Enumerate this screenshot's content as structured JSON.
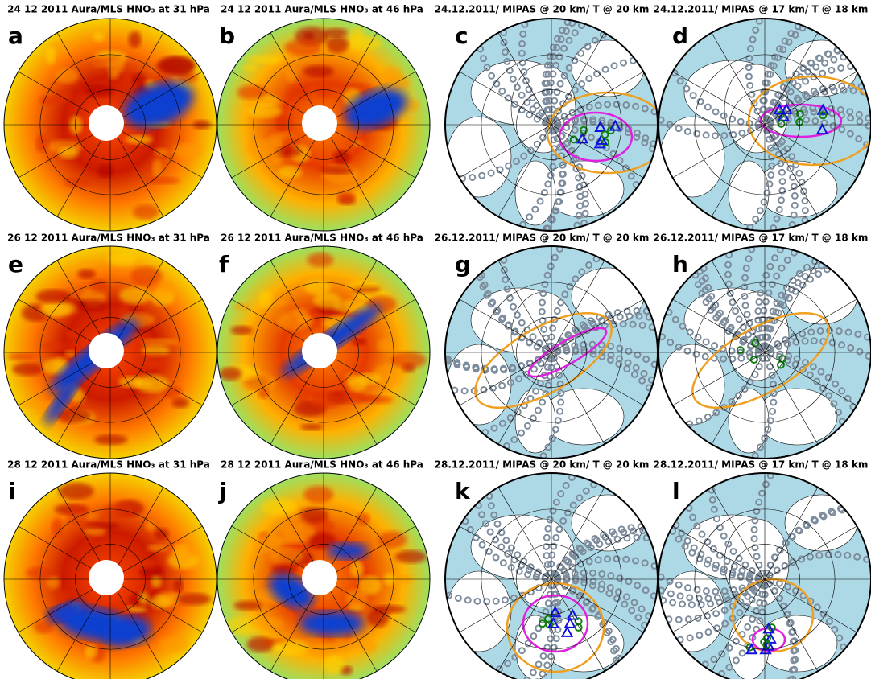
{
  "panels": [
    {
      "label": "a",
      "title": "24 12 2011 Aura/MLS HNO₃ at 31 hPa"
    },
    {
      "label": "b",
      "title": "24 12 2011 Aura/MLS HNO₃ at 46 hPa"
    },
    {
      "label": "c",
      "title": "24.12.2011/ MIPAS @ 20 km/ T @ 20 km"
    },
    {
      "label": "d",
      "title": "24.12.2011/ MIPAS @ 17 km/ T @ 18 km"
    },
    {
      "label": "e",
      "title": "26 12 2011 Aura/MLS HNO₃ at 31 hPa"
    },
    {
      "label": "f",
      "title": "26 12 2011 Aura/MLS HNO₃ at 46 hPa"
    },
    {
      "label": "g",
      "title": "26.12.2011/ MIPAS @ 20 km/ T @ 20 km"
    },
    {
      "label": "h",
      "title": "26.12.2011/ MIPAS @ 17 km/ T @ 18 km"
    },
    {
      "label": "i",
      "title": "28 12 2011 Aura/MLS HNO₃ at 31 hPa"
    },
    {
      "label": "j",
      "title": "28 12 2011 Aura/MLS HNO₃ at 46 hPa"
    },
    {
      "label": "k",
      "title": "28.12.2011/ MIPAS @ 20 km/ T @ 20 km"
    },
    {
      "label": "l",
      "title": "28.12.2011/ MIPAS @ 17 km/ T @ 18 km"
    }
  ]
}
